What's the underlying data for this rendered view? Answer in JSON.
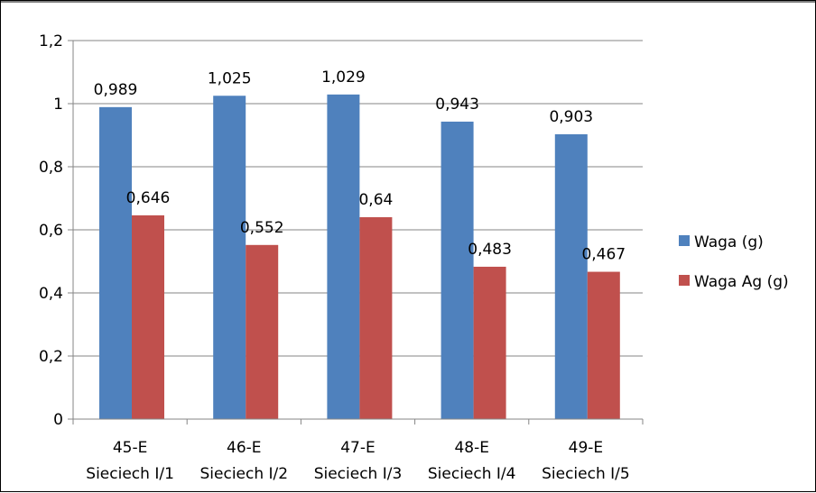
{
  "chart_data": {
    "type": "bar",
    "categories": [
      [
        "45-E",
        "Sieciech I/1"
      ],
      [
        "46-E",
        "Sieciech I/2"
      ],
      [
        "47-E",
        "Sieciech I/3"
      ],
      [
        "48-E",
        "Sieciech I/4"
      ],
      [
        "49-E",
        "Sieciech I/5"
      ]
    ],
    "series": [
      {
        "name": "Waga (g)",
        "color": "#4f81bd",
        "values": [
          0.989,
          1.025,
          1.029,
          0.943,
          0.903
        ],
        "labels": [
          "0,989",
          "1,025",
          "1,029",
          "0,943",
          "0,903"
        ]
      },
      {
        "name": "Waga Ag (g)",
        "color": "#c0504d",
        "values": [
          0.646,
          0.552,
          0.64,
          0.483,
          0.467
        ],
        "labels": [
          "0,646",
          "0,552",
          "0,64",
          "0,483",
          "0,467"
        ]
      }
    ],
    "yticks": [
      0,
      0.2,
      0.4,
      0.6,
      0.8,
      1,
      1.2
    ],
    "ytick_labels": [
      "0",
      "0,2",
      "0,4",
      "0,6",
      "0,8",
      "1",
      "1,2"
    ],
    "ylim": [
      0,
      1.2
    ],
    "grid": true,
    "legend_position": "right"
  }
}
